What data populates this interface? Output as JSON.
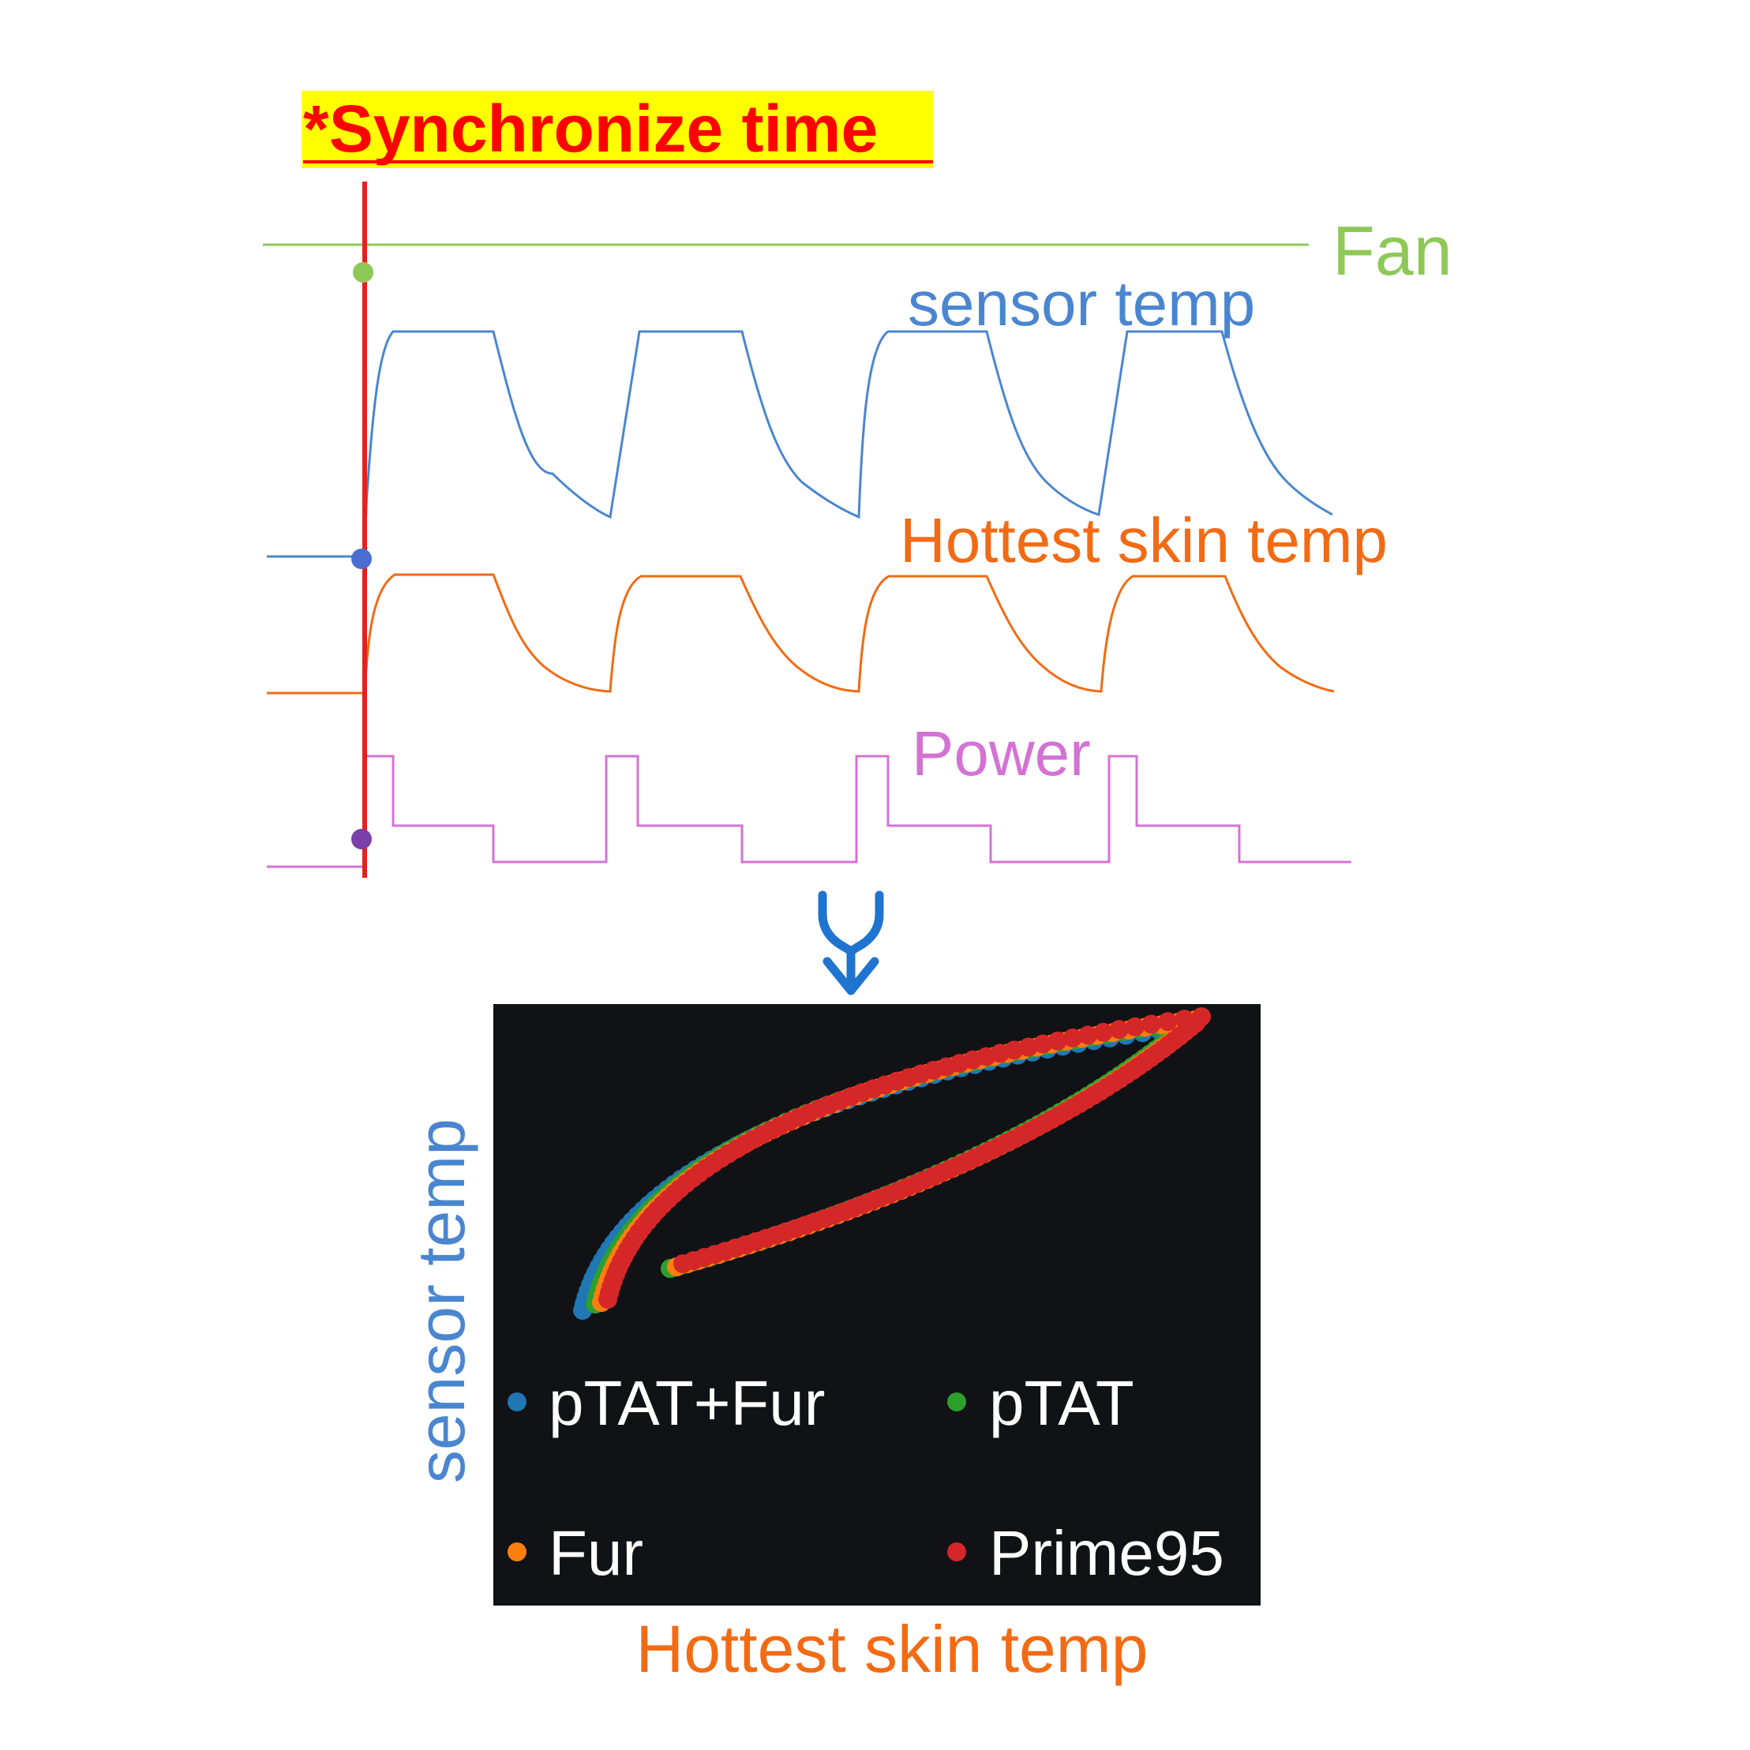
{
  "header": {
    "title": "*Synchronize time",
    "title_color": "#ff0000",
    "title_highlight": "#ffff00"
  },
  "timeline": {
    "sync_line_color": "#e8201c",
    "signals": [
      {
        "key": "fan",
        "label": "Fan",
        "color": "#8ec957",
        "marker_color": "#8ec957"
      },
      {
        "key": "sensor",
        "label": "sensor temp",
        "color": "#4a86d0",
        "marker_color": "#4a6ed0"
      },
      {
        "key": "skin",
        "label": "Hottest skin temp",
        "color": "#f26b14",
        "marker_color": null
      },
      {
        "key": "power",
        "label": "Power",
        "color": "#d472d4",
        "marker_color": "#7a3fa8"
      }
    ]
  },
  "arrow": {
    "icon": "merge-arrow-down-icon",
    "color": "#1f74d0"
  },
  "scatter": {
    "background": "#111216",
    "x_label": "Hottest skin temp",
    "y_label": "sensor temp",
    "x_label_color": "#f26b14",
    "y_label_color": "#4a86d0",
    "legend": [
      {
        "label": "pTAT+Fur",
        "color": "#1f77b4"
      },
      {
        "label": "pTAT",
        "color": "#2ca02c"
      },
      {
        "label": "Fur",
        "color": "#ff7f0e"
      },
      {
        "label": "Prime95",
        "color": "#d62728"
      }
    ]
  }
}
